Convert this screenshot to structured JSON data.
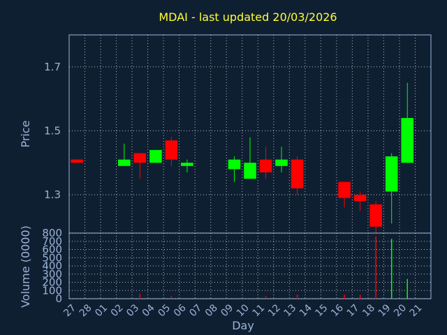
{
  "chart_data": [
    {
      "type": "candlestick",
      "title": "MDAI - last updated 20/03/2026",
      "ylabel": "Price",
      "ylim": [
        1.18,
        1.8
      ],
      "yticks": [
        "1.3",
        "1.5",
        "1.7"
      ],
      "ytick_values": [
        1.3,
        1.5,
        1.7
      ],
      "grid": true,
      "categories": [
        "27",
        "28",
        "01",
        "02",
        "03",
        "04",
        "05",
        "06",
        "07",
        "08",
        "09",
        "10",
        "11",
        "12",
        "13",
        "14",
        "15",
        "16",
        "17",
        "18",
        "19",
        "20",
        "21"
      ],
      "candles": [
        {
          "day": "27",
          "open": 1.41,
          "high": 1.41,
          "low": 1.4,
          "close": 1.4
        },
        {
          "day": "02",
          "open": 1.39,
          "high": 1.46,
          "low": 1.39,
          "close": 1.41
        },
        {
          "day": "03",
          "open": 1.43,
          "high": 1.43,
          "low": 1.35,
          "close": 1.4
        },
        {
          "day": "04",
          "open": 1.4,
          "high": 1.44,
          "low": 1.4,
          "close": 1.44
        },
        {
          "day": "05",
          "open": 1.47,
          "high": 1.48,
          "low": 1.39,
          "close": 1.41
        },
        {
          "day": "06",
          "open": 1.39,
          "high": 1.41,
          "low": 1.37,
          "close": 1.4
        },
        {
          "day": "09",
          "open": 1.38,
          "high": 1.42,
          "low": 1.34,
          "close": 1.41
        },
        {
          "day": "10",
          "open": 1.35,
          "high": 1.48,
          "low": 1.35,
          "close": 1.4
        },
        {
          "day": "11",
          "open": 1.41,
          "high": 1.45,
          "low": 1.35,
          "close": 1.37
        },
        {
          "day": "12",
          "open": 1.39,
          "high": 1.45,
          "low": 1.37,
          "close": 1.41
        },
        {
          "day": "13",
          "open": 1.41,
          "high": 1.42,
          "low": 1.3,
          "close": 1.32
        },
        {
          "day": "16",
          "open": 1.34,
          "high": 1.34,
          "low": 1.26,
          "close": 1.29
        },
        {
          "day": "17",
          "open": 1.3,
          "high": 1.31,
          "low": 1.25,
          "close": 1.28
        },
        {
          "day": "18",
          "open": 1.27,
          "high": 1.28,
          "low": 1.18,
          "close": 1.2
        },
        {
          "day": "19",
          "open": 1.31,
          "high": 1.43,
          "low": 1.21,
          "close": 1.42
        },
        {
          "day": "20",
          "open": 1.4,
          "high": 1.65,
          "low": 1.4,
          "close": 1.54
        }
      ]
    },
    {
      "type": "bar",
      "ylabel": "Volume (0000)",
      "xlabel": "Day",
      "ylim": [
        0,
        800
      ],
      "yticks": [
        "0",
        "100",
        "200",
        "300",
        "400",
        "500",
        "600",
        "700",
        "800"
      ],
      "ytick_values": [
        0,
        100,
        200,
        300,
        400,
        500,
        600,
        700,
        800
      ],
      "categories": [
        "27",
        "28",
        "01",
        "02",
        "03",
        "04",
        "05",
        "06",
        "07",
        "08",
        "09",
        "10",
        "11",
        "12",
        "13",
        "14",
        "15",
        "16",
        "17",
        "18",
        "19",
        "20",
        "21"
      ],
      "bars": [
        {
          "day": "03",
          "value": 60,
          "color": "red"
        },
        {
          "day": "05",
          "value": 30,
          "color": "red"
        },
        {
          "day": "11",
          "value": 30,
          "color": "red"
        },
        {
          "day": "13",
          "value": 50,
          "color": "red"
        },
        {
          "day": "16",
          "value": 50,
          "color": "red"
        },
        {
          "day": "17",
          "value": 50,
          "color": "red"
        },
        {
          "day": "18",
          "value": 760,
          "color": "red"
        },
        {
          "day": "19",
          "value": 730,
          "color": "green"
        },
        {
          "day": "20",
          "value": 240,
          "color": "green"
        }
      ]
    }
  ],
  "colors": {
    "background": "#0f1f32",
    "up": "#00ff00",
    "down": "#ff0000",
    "title": "#ffff33",
    "text": "#9ab4d6",
    "grid": "#ffffff"
  }
}
